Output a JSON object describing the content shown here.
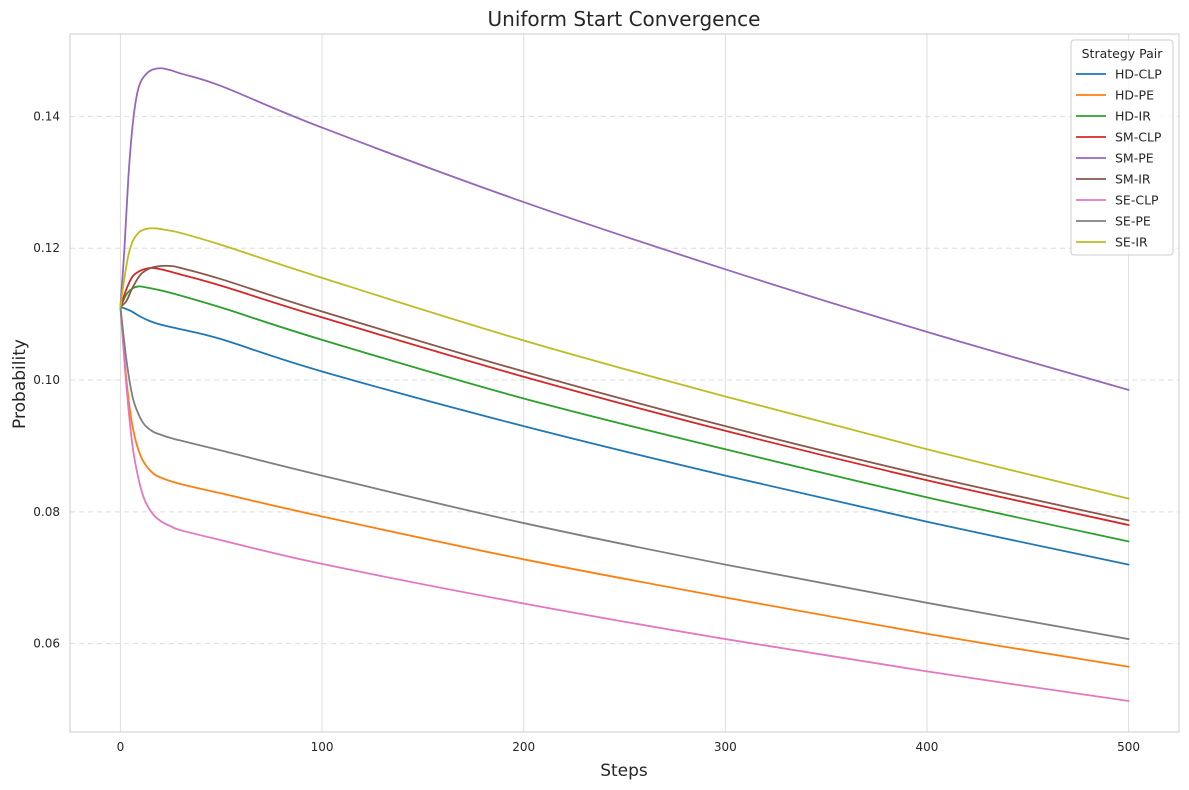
{
  "chart_data": {
    "type": "line",
    "title": "Uniform Start Convergence",
    "xlabel": "Steps",
    "ylabel": "Probability",
    "xlim": [
      -25,
      525
    ],
    "ylim": [
      0.0466,
      0.1525
    ],
    "xticks": [
      0,
      100,
      200,
      300,
      400,
      500
    ],
    "yticks": [
      0.06,
      0.08,
      0.1,
      0.12,
      0.14
    ],
    "ytick_labels": [
      "0.06",
      "0.08",
      "0.10",
      "0.12",
      "0.14"
    ],
    "xtick_labels": [
      "0",
      "100",
      "200",
      "300",
      "400",
      "500"
    ],
    "grid": {
      "x": "solid",
      "y": "dashed"
    },
    "legend": {
      "title": "Strategy Pair",
      "placement": "top-right"
    },
    "series": [
      {
        "name": "HD-CLP",
        "color": "#1f77b4",
        "x": [
          0,
          5,
          10,
          15,
          20,
          30,
          50,
          100,
          200,
          300,
          400,
          500
        ],
        "y": [
          0.1111,
          0.1105,
          0.1096,
          0.1089,
          0.1084,
          0.1077,
          0.1062,
          0.1013,
          0.093,
          0.0855,
          0.0785,
          0.072
        ]
      },
      {
        "name": "HD-PE",
        "color": "#ff7f0e",
        "x": [
          0,
          3,
          6,
          10,
          15,
          20,
          30,
          50,
          100,
          200,
          300,
          400,
          500
        ],
        "y": [
          0.1111,
          0.1,
          0.093,
          0.0885,
          0.0862,
          0.0852,
          0.0842,
          0.0828,
          0.0793,
          0.0728,
          0.067,
          0.0615,
          0.0565
        ]
      },
      {
        "name": "HD-IR",
        "color": "#2ca02c",
        "x": [
          0,
          3,
          6,
          9,
          12,
          20,
          30,
          50,
          100,
          200,
          300,
          400,
          500
        ],
        "y": [
          0.1111,
          0.113,
          0.1139,
          0.1142,
          0.1141,
          0.1136,
          0.1128,
          0.111,
          0.1061,
          0.0972,
          0.0895,
          0.0822,
          0.0755
        ]
      },
      {
        "name": "SM-CLP",
        "color": "#d62728",
        "x": [
          0,
          3,
          6,
          10,
          15,
          20,
          30,
          50,
          100,
          200,
          300,
          400,
          500
        ],
        "y": [
          0.1111,
          0.1138,
          0.1157,
          0.1166,
          0.117,
          0.1168,
          0.116,
          0.1143,
          0.1095,
          0.1005,
          0.0923,
          0.0848,
          0.078
        ]
      },
      {
        "name": "SM-PE",
        "color": "#9467bd",
        "x": [
          0,
          2,
          4,
          6,
          8,
          10,
          13,
          16,
          20,
          25,
          30,
          50,
          100,
          200,
          300,
          400,
          500
        ],
        "y": [
          0.1111,
          0.12,
          0.131,
          0.1385,
          0.143,
          0.1452,
          0.1465,
          0.1471,
          0.1473,
          0.147,
          0.1465,
          0.1446,
          0.1383,
          0.127,
          0.1168,
          0.1073,
          0.0985
        ]
      },
      {
        "name": "SM-IR",
        "color": "#8c564b",
        "x": [
          0,
          3,
          6,
          10,
          15,
          20,
          25,
          30,
          50,
          100,
          200,
          300,
          400,
          500
        ],
        "y": [
          0.1111,
          0.112,
          0.114,
          0.116,
          0.117,
          0.1173,
          0.1173,
          0.117,
          0.1153,
          0.1104,
          0.1013,
          0.093,
          0.0855,
          0.0787
        ]
      },
      {
        "name": "SE-CLP",
        "color": "#e377c2",
        "x": [
          0,
          3,
          6,
          9,
          12,
          16,
          20,
          25,
          30,
          50,
          100,
          200,
          300,
          400,
          500
        ],
        "y": [
          0.1111,
          0.099,
          0.09,
          0.085,
          0.0818,
          0.0797,
          0.0786,
          0.0778,
          0.0772,
          0.0757,
          0.0721,
          0.0661,
          0.0607,
          0.0558,
          0.0513
        ]
      },
      {
        "name": "SE-PE",
        "color": "#7f7f7f",
        "x": [
          0,
          3,
          6,
          9,
          12,
          16,
          20,
          25,
          30,
          50,
          100,
          200,
          300,
          400,
          500
        ],
        "y": [
          0.1111,
          0.103,
          0.0975,
          0.0948,
          0.0932,
          0.0922,
          0.0917,
          0.0912,
          0.0908,
          0.0893,
          0.0855,
          0.0783,
          0.072,
          0.0662,
          0.0607
        ]
      },
      {
        "name": "SE-IR",
        "color": "#bcbd22",
        "x": [
          0,
          2,
          4,
          6,
          8,
          10,
          14,
          18,
          22,
          30,
          50,
          100,
          200,
          300,
          400,
          500
        ],
        "y": [
          0.1111,
          0.1155,
          0.119,
          0.121,
          0.122,
          0.1226,
          0.123,
          0.123,
          0.1228,
          0.1223,
          0.1205,
          0.1155,
          0.106,
          0.0975,
          0.0895,
          0.082
        ]
      }
    ]
  }
}
